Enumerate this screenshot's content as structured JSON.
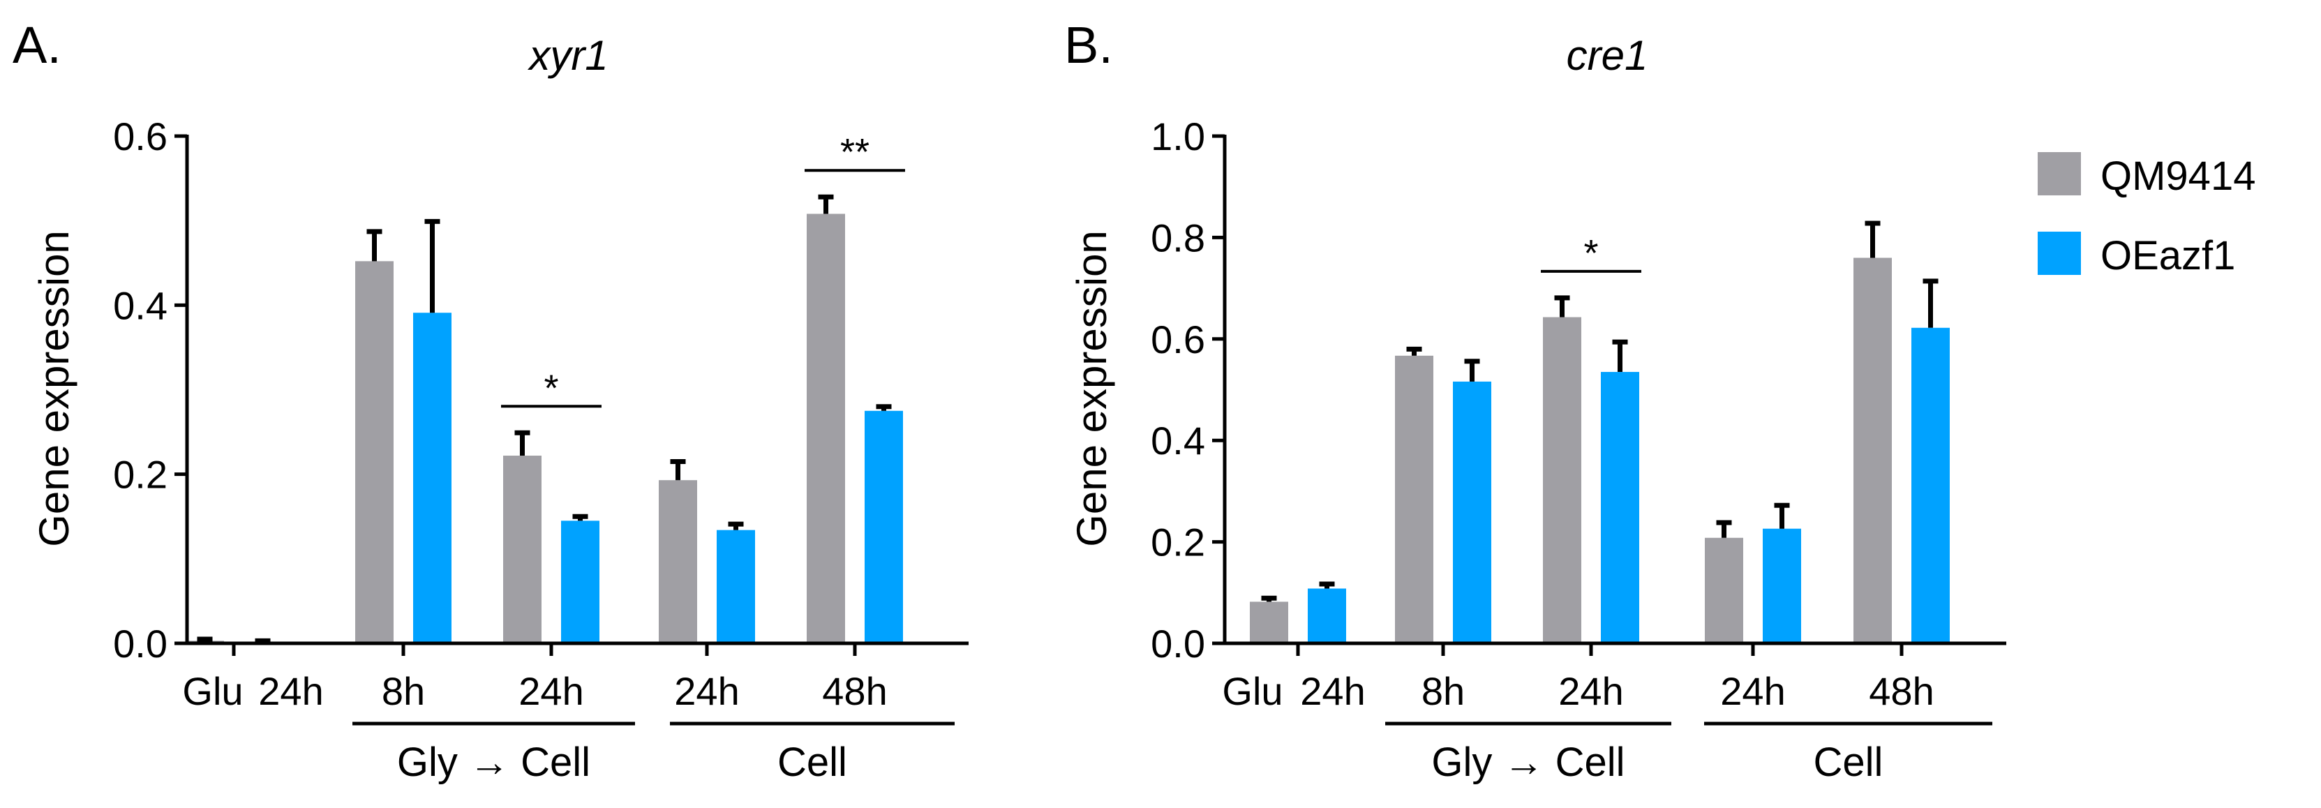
{
  "legend": {
    "entries": [
      {
        "name": "QM9414",
        "color": "#a09fa4"
      },
      {
        "name": "OEazf1",
        "color": "#00a2ff"
      }
    ]
  },
  "chart_data": [
    {
      "type": "bar",
      "panel_label": "A.",
      "title": "xyr1",
      "ylabel": "Gene expression",
      "xlabel": "",
      "ylim": [
        0,
        0.6
      ],
      "yticks": [
        "0.0",
        "0.2",
        "0.4",
        "0.6"
      ],
      "categories": [
        "Glu 24h",
        "Gly → Cell 8h",
        "Gly → Cell 24h",
        "Cell 24h",
        "Cell 48h"
      ],
      "tick_labels": [
        "Glu",
        "24h",
        "8h",
        "24h",
        "24h",
        "48h"
      ],
      "group_labels": [
        "Gly → Cell",
        "Cell"
      ],
      "series": [
        {
          "name": "QM9414",
          "values": [
            0.003,
            0.452,
            0.222,
            0.193,
            0.508
          ],
          "errors": [
            0.002,
            0.035,
            0.027,
            0.022,
            0.02
          ]
        },
        {
          "name": "OEazf1",
          "values": [
            0.002,
            0.391,
            0.145,
            0.134,
            0.275
          ],
          "errors": [
            0.001,
            0.108,
            0.005,
            0.007,
            0.005
          ]
        }
      ],
      "significance": [
        {
          "category_index": 2,
          "label": "*"
        },
        {
          "category_index": 4,
          "label": "**"
        }
      ]
    },
    {
      "type": "bar",
      "panel_label": "B.",
      "title": "cre1",
      "ylabel": "Gene expression",
      "xlabel": "",
      "ylim": [
        0,
        1.0
      ],
      "yticks": [
        "0.0",
        "0.2",
        "0.4",
        "0.6",
        "0.8",
        "1.0"
      ],
      "categories": [
        "Glu 24h",
        "Gly → Cell 8h",
        "Gly → Cell 24h",
        "Cell 24h",
        "Cell 48h"
      ],
      "tick_labels": [
        "Glu",
        "24h",
        "8h",
        "24h",
        "24h",
        "48h"
      ],
      "group_labels": [
        "Gly → Cell",
        "Cell"
      ],
      "series": [
        {
          "name": "QM9414",
          "values": [
            0.082,
            0.567,
            0.643,
            0.208,
            0.76
          ],
          "errors": [
            0.007,
            0.013,
            0.038,
            0.03,
            0.068
          ]
        },
        {
          "name": "OEazf1",
          "values": [
            0.108,
            0.516,
            0.535,
            0.226,
            0.622
          ],
          "errors": [
            0.009,
            0.04,
            0.059,
            0.046,
            0.092
          ]
        }
      ],
      "significance": [
        {
          "category_index": 2,
          "label": "*"
        }
      ]
    }
  ]
}
